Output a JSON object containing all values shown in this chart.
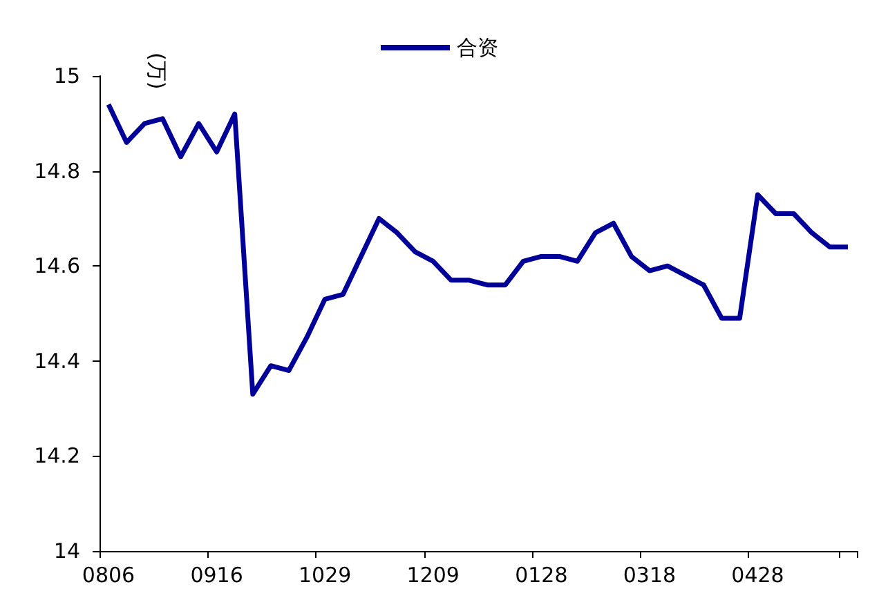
{
  "chart_data": {
    "type": "line",
    "ylabel": "(万)",
    "categories": [
      "0806",
      null,
      null,
      null,
      null,
      null,
      "0916",
      null,
      null,
      null,
      null,
      null,
      "1029",
      null,
      null,
      null,
      null,
      null,
      "1209",
      null,
      null,
      null,
      null,
      null,
      "0128",
      null,
      null,
      null,
      null,
      null,
      "0318",
      null,
      null,
      null,
      null,
      null,
      "0428",
      null,
      null,
      null,
      null,
      null
    ],
    "series": [
      {
        "name": "合资",
        "color": "#000099",
        "values": [
          14.94,
          14.86,
          14.9,
          14.91,
          14.83,
          14.9,
          14.84,
          14.92,
          14.33,
          14.39,
          14.38,
          14.45,
          14.53,
          14.54,
          14.62,
          14.7,
          14.67,
          14.63,
          14.61,
          14.57,
          14.57,
          14.56,
          14.56,
          14.61,
          14.62,
          14.62,
          14.61,
          14.67,
          14.69,
          14.62,
          14.59,
          14.6,
          14.58,
          14.56,
          14.49,
          14.49,
          14.75,
          14.71,
          14.71,
          14.67,
          14.64,
          14.64
        ]
      }
    ],
    "ylim": [
      14,
      15
    ],
    "yticks": [
      14,
      14.2,
      14.4,
      14.6,
      14.8,
      15
    ],
    "grid": false,
    "legend": "top",
    "marker": "none",
    "line_style": "solid"
  }
}
